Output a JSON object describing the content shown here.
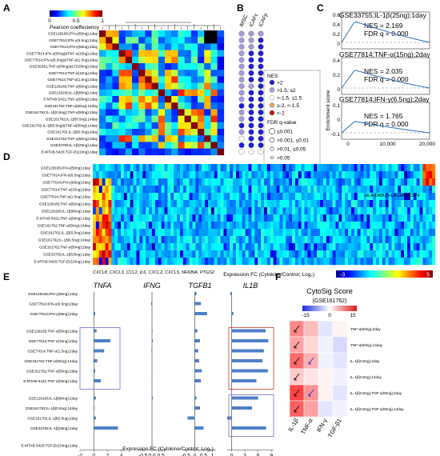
{
  "panels": {
    "a": "A",
    "b": "B",
    "c": "C",
    "d": "D",
    "e": "E",
    "f": "F"
  },
  "rows_ab": [
    "GSE129165;IFN-γ(50ng);1day",
    "GSE77814;IFN-γ(6.5ng);2day",
    "GSE77814;IFN-γ(65ng);2day",
    "GSE77814;IFN-γ(65ng)&TNF-α(15ng);2day",
    "GSE77814;IFN-γ(6.5ng)&TNF-α(1.5ng);2day",
    "GSE35331;TNF-α(50ng)&LT(100ng);3day",
    "GSE77814;TNF-α(15ng);2day",
    "GSE77814;TNF-α(1.5ng);2day",
    "GSE129165;TNF-α(50ng);1day",
    "GSE129165;IL-1β(80ng);1day",
    "E-MTAB-5421;TNF-α(50ng);1day",
    "GSE161762;TNF-α(50ng);14day",
    "GSE161762;IL-1β(0.5ng);TNF-α(50ng);2day",
    "GSE161762;IL-1β(0.5ng);14day",
    "GSE161762;IL-1β(0.5ng)&TNF-α(50ng);14day",
    "GSE161762;IL-1β(0.5ng);2day",
    "GSE161762;TNF-α(50ng);2day",
    "GSE33755;IL-1β(25ng);1day",
    "E-MTAB-5420;TGF-β1(10ng);1day"
  ],
  "panel_a": {
    "colorbar_ticks": [
      "0",
      "0.5",
      "1"
    ],
    "colorbar_label": "Pearson coeffeciency"
  },
  "panel_b": {
    "columns": [
      "iMSC",
      "iCAFc",
      "iCAFp"
    ],
    "legend_nes_title": "NES",
    "legend_nes": [
      ">2",
      ">1.5, ≤2",
      ">-1.5, ≤1.5",
      "≥-2, <-1.5",
      "<-2"
    ],
    "legend_fdr_title": "FDR q-value",
    "legend_fdr": [
      "≤0.001",
      ">0.001, ≤0.01",
      ">0.01, ≤0.05",
      ">0.05"
    ],
    "colors": {
      "nes_high": "#1f1fd0",
      "nes_mid": "#a79ad8",
      "nes_zero": "#ffffff",
      "nes_neg": "#f2a070",
      "nes_low": "#c01616"
    }
  },
  "panel_c": {
    "ylabel": "Enrichment score",
    "xticks": [
      "0",
      "10,000",
      "20,000"
    ],
    "plots": [
      {
        "title": "GSE33755;IL-1β(25ng);1day",
        "nes": "NES = 2.169",
        "fdr": "FDR q = 0.000",
        "yticks": [
          "0.6",
          "0.4",
          "0.2",
          "0"
        ]
      },
      {
        "title": "GSE77814;TNF-α(15ng);2day",
        "nes": "NES = 2.035",
        "fdr": "FDR q = 0.000",
        "yticks": [
          "0.4",
          "0.2",
          "0"
        ]
      },
      {
        "title": "GSE77814;IFN-γ(6.5ng);2day",
        "nes": "NES = 1.765",
        "fdr": "FDR q = 0.000",
        "yticks": [
          "0.1",
          "0",
          "-0.1"
        ]
      }
    ]
  },
  "panel_d": {
    "rows": [
      "GSE129165;IFN-γ(50ng);1day",
      "GSE77814;IFN-γ(6.5ng);2day",
      "GSE77814;IFN-γ(65ng);2day",
      "GSE77814;TNF-α(15ng);2day",
      "GSE77814;TNF-α(1.5ng);2day",
      "GSE129165;TNF-α(50ng);1day",
      "GSE129165;IL-1β(80ng);1day",
      "E-MTAB-5421;TNF-α(50ng);1day",
      "GSE161762;TNF-α(50ng);14day",
      "GSE161762;IL-1β(0.5ng);2day",
      "GSE161762;IL-1β(0.5ng);14day",
      "GSE161762;TNF-α(50ng);2day",
      "GSE33755;IL-1β(25ng);1day",
      "E-MTAB-5420;TGF-β1(10ng);1day"
    ],
    "annotation_right": "HLA-DRB1,HLA-DRA,CD74",
    "annotation_bottom": "CXCL8, CXCL3, CCL2, IL6, CXCL2, CXCL5, NFKBIA, PTGS2",
    "colorbar_label": "Expression FC (Cytokine/Control; Log₂)",
    "colorbar_min": "-3",
    "colorbar_max": "5"
  },
  "panel_e": {
    "rows": [
      "GSE129165;IFN-γ(50ng);1day",
      "GSE77814;IFN-γ(6.5ng);2day",
      "GSE77814;IFN-γ(65ng);2day",
      "GSE129165;TNF-α(50ng);1day",
      "GSE77814;TNF-α(15ng);2day",
      "GSE77814;TNF-α(1.5ng);2day",
      "GSE161762;TNF-α(50ng);14day",
      "GSE161762;TNF-α(50ng);2day",
      "E-MTAB-5421;TNF-α(50ng);1day",
      "GSE129165;IL-1β(80ng);1day",
      "GSE161762;IL-1β(0.5ng);14day",
      "GSE161762;IL-1β(0.5ng);2day",
      "GSE33755;IL-1β(25ng);1day",
      "E-MTAB-5420;TGF-β1(10ng);1day"
    ],
    "genes": [
      {
        "name": "TNFA",
        "ticks": [
          "-2",
          "0",
          "2",
          "4"
        ],
        "min": -2,
        "max": 4.5,
        "values": [
          0,
          0,
          0.2,
          0.4,
          2.4,
          1.5,
          0.5,
          0.2,
          1.0,
          0.3,
          0.1,
          0.3,
          3.5,
          0
        ]
      },
      {
        "name": "IFNG",
        "ticks": [
          "-0.5",
          "0.0",
          "0.5"
        ],
        "min": -0.8,
        "max": 0.8,
        "values": [
          0,
          -0.05,
          0.02,
          0.03,
          0.05,
          -0.03,
          0,
          0.02,
          -0.02,
          0.05,
          0,
          0,
          0,
          0
        ]
      },
      {
        "name": "TGFB1",
        "ticks": [
          "-0.5",
          "0",
          "0.5",
          "1"
        ],
        "min": -0.6,
        "max": 1.2,
        "values": [
          0.1,
          0.35,
          0.7,
          0.15,
          0.3,
          0.2,
          0.25,
          0.4,
          0.35,
          0.1,
          0.3,
          -0.4,
          0.5,
          0
        ]
      },
      {
        "name": "IL1B",
        "ticks": [
          "0",
          "3",
          "6",
          "9"
        ],
        "min": -1,
        "max": 9.5,
        "values": [
          -0.3,
          0.1,
          0.4,
          7.7,
          8.3,
          7.3,
          7.0,
          8.2,
          5.6,
          6.0,
          4.6,
          -1.0,
          7.8,
          0
        ]
      }
    ],
    "xlabel": "Expression FC (Cytokine/Control; Log₂)"
  },
  "panel_f": {
    "title": "CytoSig Score",
    "subtitle": "(GSE161762)",
    "colorbar_ticks": [
      "-15",
      "0",
      "15"
    ],
    "rows": [
      "TNF-α(50ng);2day",
      "TNF-α(50ng);14day",
      "IL-1β(0.5ng);2day",
      "IL-1β(0.5ng);14day",
      "IL-1β(0.5ng);TNF-α(50ng);2day",
      "IL-1β(0.5ng);TNF-α(50ng);14day"
    ],
    "columns": [
      "IL-1β",
      "TNF-α",
      "IFN-γ",
      "TGF-β1"
    ],
    "values": [
      [
        9,
        5,
        -2,
        1
      ],
      [
        7,
        3,
        -1,
        -3
      ],
      [
        11,
        6,
        -1,
        -2
      ],
      [
        4,
        2,
        1,
        -1
      ],
      [
        14,
        8,
        1,
        -2
      ],
      [
        12,
        7,
        -2,
        -1
      ]
    ],
    "arrows": [
      [
        1,
        0,
        0,
        0
      ],
      [
        1,
        0,
        0,
        0
      ],
      [
        1,
        1,
        0,
        0
      ],
      [
        1,
        0,
        0,
        0
      ],
      [
        1,
        1,
        0,
        0
      ],
      [
        1,
        0,
        0,
        0
      ]
    ]
  }
}
